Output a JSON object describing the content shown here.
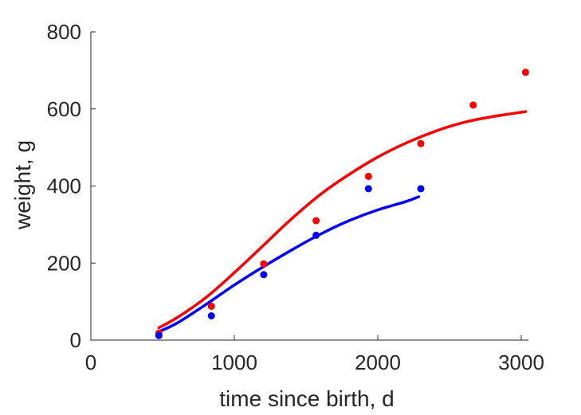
{
  "chart_data": {
    "type": "scatter",
    "title": "",
    "xlabel": "time since birth, d",
    "ylabel": "weight, g",
    "xlim": [
      0,
      3050
    ],
    "ylim": [
      0,
      800
    ],
    "xticks": [
      0,
      1000,
      2000,
      3000
    ],
    "yticks": [
      0,
      200,
      400,
      600,
      800
    ],
    "grid": false,
    "legend": "none",
    "series": [
      {
        "color": "#ff0000",
        "points": {
          "x": [
            474,
            840,
            1205,
            1570,
            1935,
            2300,
            2665,
            3030
          ],
          "y": [
            18,
            88,
            198,
            310,
            425,
            510,
            610,
            695
          ]
        },
        "fit": {
          "x": [
            474,
            600,
            800,
            1000,
            1200,
            1400,
            1600,
            1800,
            2000,
            2200,
            2400,
            2600,
            2800,
            3030
          ],
          "y": [
            32,
            58,
            110,
            175,
            245,
            315,
            378,
            430,
            475,
            512,
            542,
            565,
            580,
            593
          ]
        }
      },
      {
        "color": "#0000ff",
        "points": {
          "x": [
            474,
            840,
            1205,
            1570,
            1935,
            2300
          ],
          "y": [
            12,
            63,
            170,
            272,
            393,
            393
          ]
        },
        "fit": {
          "x": [
            474,
            600,
            800,
            1000,
            1200,
            1400,
            1600,
            1800,
            2000,
            2200,
            2285
          ],
          "y": [
            22,
            44,
            92,
            143,
            190,
            234,
            275,
            310,
            338,
            360,
            372
          ]
        }
      }
    ]
  }
}
